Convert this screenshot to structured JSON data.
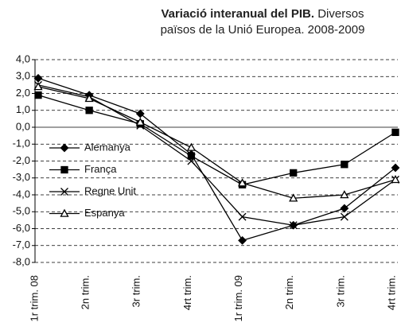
{
  "chart_data": {
    "type": "line",
    "title": "Variació interanual del PIB.",
    "subtitle": "Diversos països  de la Unió Europea. 2008-2009",
    "categories": [
      "1r trim. 08",
      "2n trim.",
      "3r trim.",
      "4rt trim.",
      "1r trim. 09",
      "2n trim.",
      "3r trim.",
      "4rt trim."
    ],
    "series": [
      {
        "name": "Alemanya",
        "color": "#000000",
        "marker": "diamond",
        "values": [
          2.9,
          1.9,
          0.8,
          -1.6,
          -6.7,
          -5.8,
          -4.8,
          -2.4
        ]
      },
      {
        "name": "França",
        "color": "#000000",
        "marker": "square",
        "values": [
          1.9,
          1.0,
          0.2,
          -1.7,
          -3.4,
          -2.7,
          -2.2,
          -0.3
        ]
      },
      {
        "name": "Regne Unit",
        "color": "#000000",
        "marker": "x",
        "values": [
          2.5,
          1.8,
          0.1,
          -2.0,
          -5.3,
          -5.8,
          -5.3,
          -3.1
        ]
      },
      {
        "name": "Espanya",
        "color": "#000000",
        "marker": "triangle",
        "values": [
          2.4,
          1.7,
          0.3,
          -1.2,
          -3.3,
          -4.2,
          -4.0,
          -3.1
        ]
      }
    ],
    "ylim": [
      -8,
      4
    ],
    "yticks": [
      {
        "value": 4,
        "label": "4,0"
      },
      {
        "value": 3,
        "label": "3,0"
      },
      {
        "value": 2,
        "label": "2,0"
      },
      {
        "value": 1,
        "label": "1,0"
      },
      {
        "value": 0,
        "label": "0,0"
      },
      {
        "value": -1,
        "label": "-1,0"
      },
      {
        "value": -2,
        "label": "-2,0"
      },
      {
        "value": -3,
        "label": "-3,0"
      },
      {
        "value": -4,
        "label": "-4,0"
      },
      {
        "value": -5,
        "label": "-5,0"
      },
      {
        "value": -6,
        "label": "-6,0"
      },
      {
        "value": -7,
        "label": "-7,0"
      },
      {
        "value": -8,
        "label": "-8,0"
      }
    ],
    "grid": true,
    "legend": "left"
  }
}
